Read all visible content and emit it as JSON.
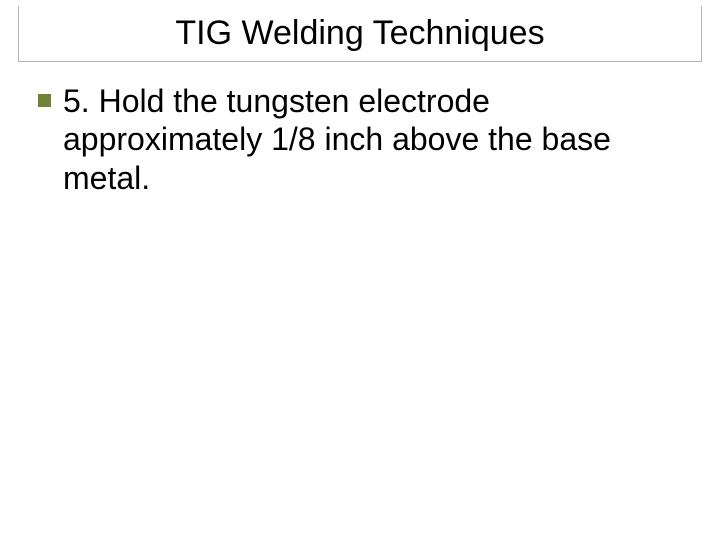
{
  "slide": {
    "title": "TIG Welding Techniques",
    "title_color": "#000000",
    "title_fontsize": 34,
    "bullet_color": "#708238",
    "bullet_size": 13,
    "body_fontsize": 32,
    "body_color": "#000000",
    "border_color": "#b0b0b0",
    "background_color": "#ffffff",
    "items": [
      {
        "text": "5. Hold the tungsten electrode approximately 1/8 inch above the base metal."
      }
    ]
  }
}
